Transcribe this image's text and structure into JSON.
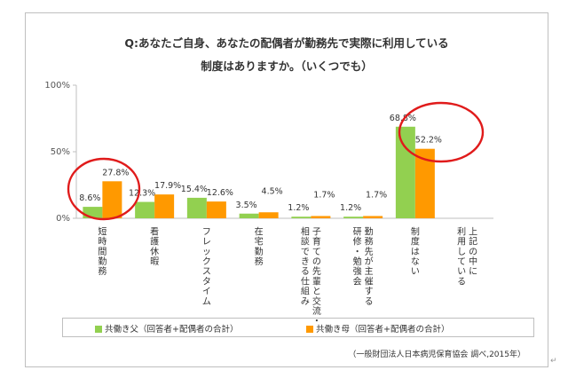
{
  "chart_data": {
    "type": "bar",
    "title": "Q:あなたご自身、あなたの配偶者が勤務先で実際に利用している",
    "subtitle": "制度はありますか。（いくつでも）",
    "categories": [
      "短時間勤務",
      "看護休暇",
      "フレックスタイム",
      "在宅勤務",
      "子育ての先輩と交流・相談できる仕組み",
      "勤務先が主催する研修・勉強会",
      "制度はない",
      "上記の中に利用している"
    ],
    "category_lines": [
      [
        "短時間勤務"
      ],
      [
        "看護休暇"
      ],
      [
        "フレックスタイム"
      ],
      [
        "在宅勤務"
      ],
      [
        "子育ての先輩と交流・",
        "相談できる仕組み"
      ],
      [
        "勤務先が主催する",
        "研修・勉強会"
      ],
      [
        "制度はない"
      ],
      [
        "上記の中に",
        "利用している"
      ]
    ],
    "series": [
      {
        "name": "共働き父（回答者+配偶者の合計）",
        "color": "#92d050",
        "values": [
          8.6,
          12.3,
          15.4,
          3.5,
          1.2,
          1.2,
          68.8,
          null
        ],
        "labels": [
          "8.6%",
          "12.3%",
          "15.4%",
          "3.5%",
          "1.2%",
          "1.2%",
          "68.8%",
          ""
        ]
      },
      {
        "name": "共働き母（回答者+配偶者の合計）",
        "color": "#ff9900",
        "values": [
          27.8,
          17.9,
          12.6,
          4.5,
          1.7,
          1.7,
          52.2,
          null
        ],
        "labels": [
          "27.8%",
          "17.9%",
          "12.6%",
          "4.5%",
          "1.7%",
          "1.7%",
          "52.2%",
          ""
        ]
      }
    ],
    "ylim": [
      0,
      100
    ],
    "yticks": [
      0,
      50,
      100
    ],
    "ytick_labels": [
      "0%",
      "50%",
      "100%"
    ],
    "grid": false,
    "legend_position": "bottom",
    "highlight_circles": [
      "短時間勤務",
      "制度はない"
    ],
    "highlight_color": "#e01b1b"
  },
  "source": "（一般財団法人日本病児保育協会  調べ,2015年）"
}
